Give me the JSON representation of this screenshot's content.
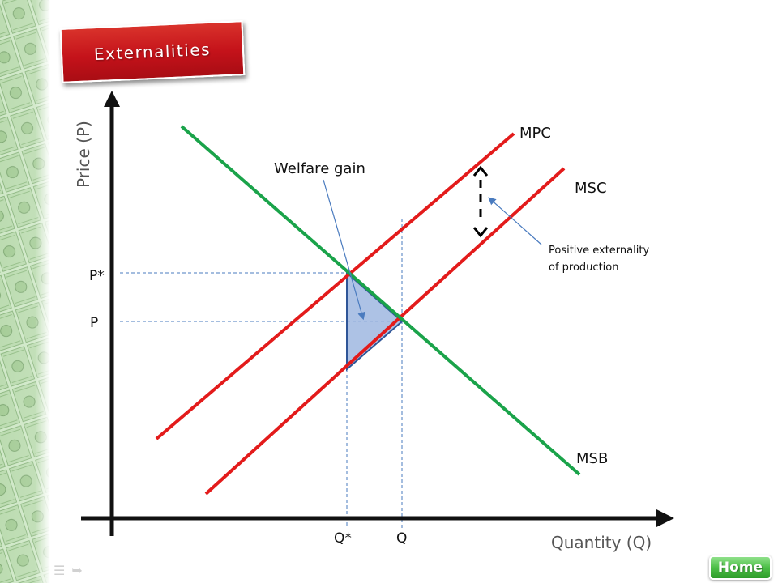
{
  "slide": {
    "title": "Externalities",
    "home_label": "Home",
    "nav": {
      "previous_icon": "notes-icon",
      "next_icon": "forward-arrow-icon"
    }
  },
  "diagram": {
    "y_axis_label": "Price (P)",
    "x_axis_label": "Quantity (Q)",
    "price_labels": {
      "p_star": "P*",
      "p": "P"
    },
    "quantity_labels": {
      "q_star": "Q*",
      "q": "Q"
    },
    "curves": {
      "mpc": "MPC",
      "msc": "MSC",
      "msb": "MSB"
    },
    "annotations": {
      "welfare_gain": "Welfare gain",
      "externality_line1": "Positive externality",
      "externality_line2": "of production"
    },
    "colors": {
      "supply": "#e31b1b",
      "benefit": "#1aa34a",
      "axis": "#111111",
      "guide": "#4a7bbf",
      "welfare_fill": "#9fb7e0",
      "welfare_edge": "#2f5597"
    }
  }
}
